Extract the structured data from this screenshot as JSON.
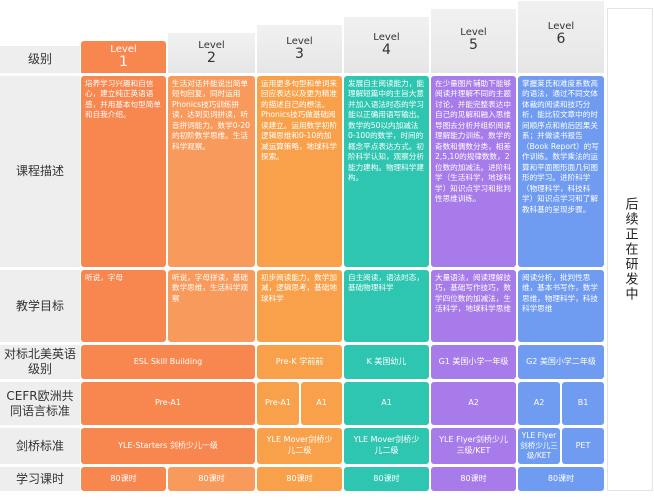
{
  "levels": [
    {
      "lv": "Level",
      "num": "1"
    },
    {
      "lv": "Level",
      "num": "2"
    },
    {
      "lv": "Level",
      "num": "3"
    },
    {
      "lv": "Level",
      "num": "4"
    },
    {
      "lv": "Level",
      "num": "5"
    },
    {
      "lv": "Level",
      "num": "6"
    }
  ],
  "row_labels": {
    "level": "级别",
    "desc": "课程描述",
    "goal": "教学目标",
    "us": "对标北美英语级别",
    "cefr": "CEFR欧洲共同语言标准",
    "cambridge": "剑桥标准",
    "hours": "学习课时"
  },
  "descriptions": [
    "培养学习兴趣和自信心，建立纯正英语语感，并用基本句型简单和自我介绍。",
    "生活对话并能说出简单短句回复，同时运用Phonics技巧训练拼读，达到见词拼读，听音拼词能力。数学0-20的初阶数学思维。生活科学观察。",
    "运用更多句型和单词来回应表达以及更为精准的描述自己的想法。Phonics技巧做基础阅读建立。运用数学初阶逻辑思维和0-10的加减运算策略，地球科学探索。",
    "发展自主阅读能力，能理解短篇中的主旨大意并加入语法时态的学习能以正确用语写输出。数学的50以内加减法0-100的数学，时间的概念平点表达方式。初阶科学认知，观察分析能力建构。物理科学建构。",
    "在少量图片辅助下能够阅读并理解不同的主题讨论，并能完整表达中自己的见解和融入思维导图去分析并组织阅读理解能力训练。数学的奇数和偶数分类，相差2,5,10的规律数数，2位数的加减法。进阶科学（生活科学，地球科学）知识点学习和批判性思维训练。",
    "掌握莱氏和难度系数高的语法，通过不同文体体裁的阅读和技巧分析，能比较文章中的时间顺序点和前后因果关系；并做读书报告（Book Report）的写作训练。数学乘法的运算和平面图形面几何图形的学习。进阶科学（物理科学，科技科学）知识点学习和了解教科基的呈现步骤。"
  ],
  "goals": [
    "听说，字母",
    "听说，字母拼读，基础数学思维，生活科学观察",
    "初步阅读能力，数学加减，逻辑思考，基础地球科学",
    "自主阅读，语法时态，基础物理科学",
    "大量语法，阅读理解技巧，基础写作技巧，数学四位数的加减法，生活科学，地球科学思维",
    "阅读分析，批判性思维，基本书写作，数学思维，物理科学，科技科学思维"
  ],
  "side_note": "后续正在研发中",
  "us_levels": [
    "ESL Skill Building",
    "Pre-K 学前前",
    "K 美国幼儿",
    "G1 美国小学一年级",
    "G2 美国小学二年级"
  ],
  "cefr": [
    "Pre-A1",
    "Pre-A1",
    "A1",
    "A1",
    "A2",
    "A2",
    "B1"
  ],
  "cambridge": [
    "YLE-Starters 剑桥少儿一级",
    "YLE Mover剑桥少儿二级",
    "YLE Mover剑桥少儿二级",
    "YLE Flyer剑桥少儿三级/KET",
    "YLE Flyer 剑桥少儿三级/KET",
    "PET"
  ],
  "hours": [
    "80课时",
    "80课时",
    "80课时",
    "80课时",
    "80课时",
    "80课时"
  ]
}
